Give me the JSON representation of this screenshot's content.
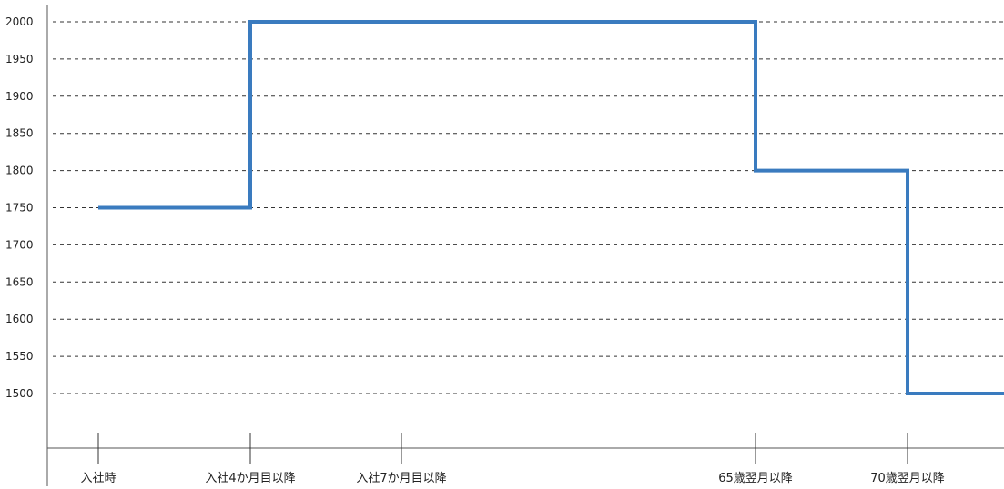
{
  "chart_data": {
    "type": "line",
    "step": true,
    "title": "",
    "xlabel": "",
    "ylabel": "",
    "x_ticks": [
      "入社時",
      "入社4か月目以降",
      "入社7か月目以降",
      "65歳翌月以降",
      "70歳翌月以降"
    ],
    "y_ticks": [
      2000,
      1950,
      1900,
      1850,
      1800,
      1750,
      1700,
      1650,
      1600,
      1550,
      1500
    ],
    "ylim": [
      1430,
      2025
    ],
    "grid": true,
    "series": [
      {
        "color": "#3a7bbf",
        "points": [
          {
            "x": "入社時",
            "y": 1750
          },
          {
            "x": "入社4か月目以降",
            "y": 2000
          },
          {
            "x": "入社7か月目以降",
            "y": 2000
          },
          {
            "x": "65歳翌月以降",
            "y": 1800
          },
          {
            "x": "70歳翌月以降",
            "y": 1500
          }
        ]
      }
    ]
  }
}
